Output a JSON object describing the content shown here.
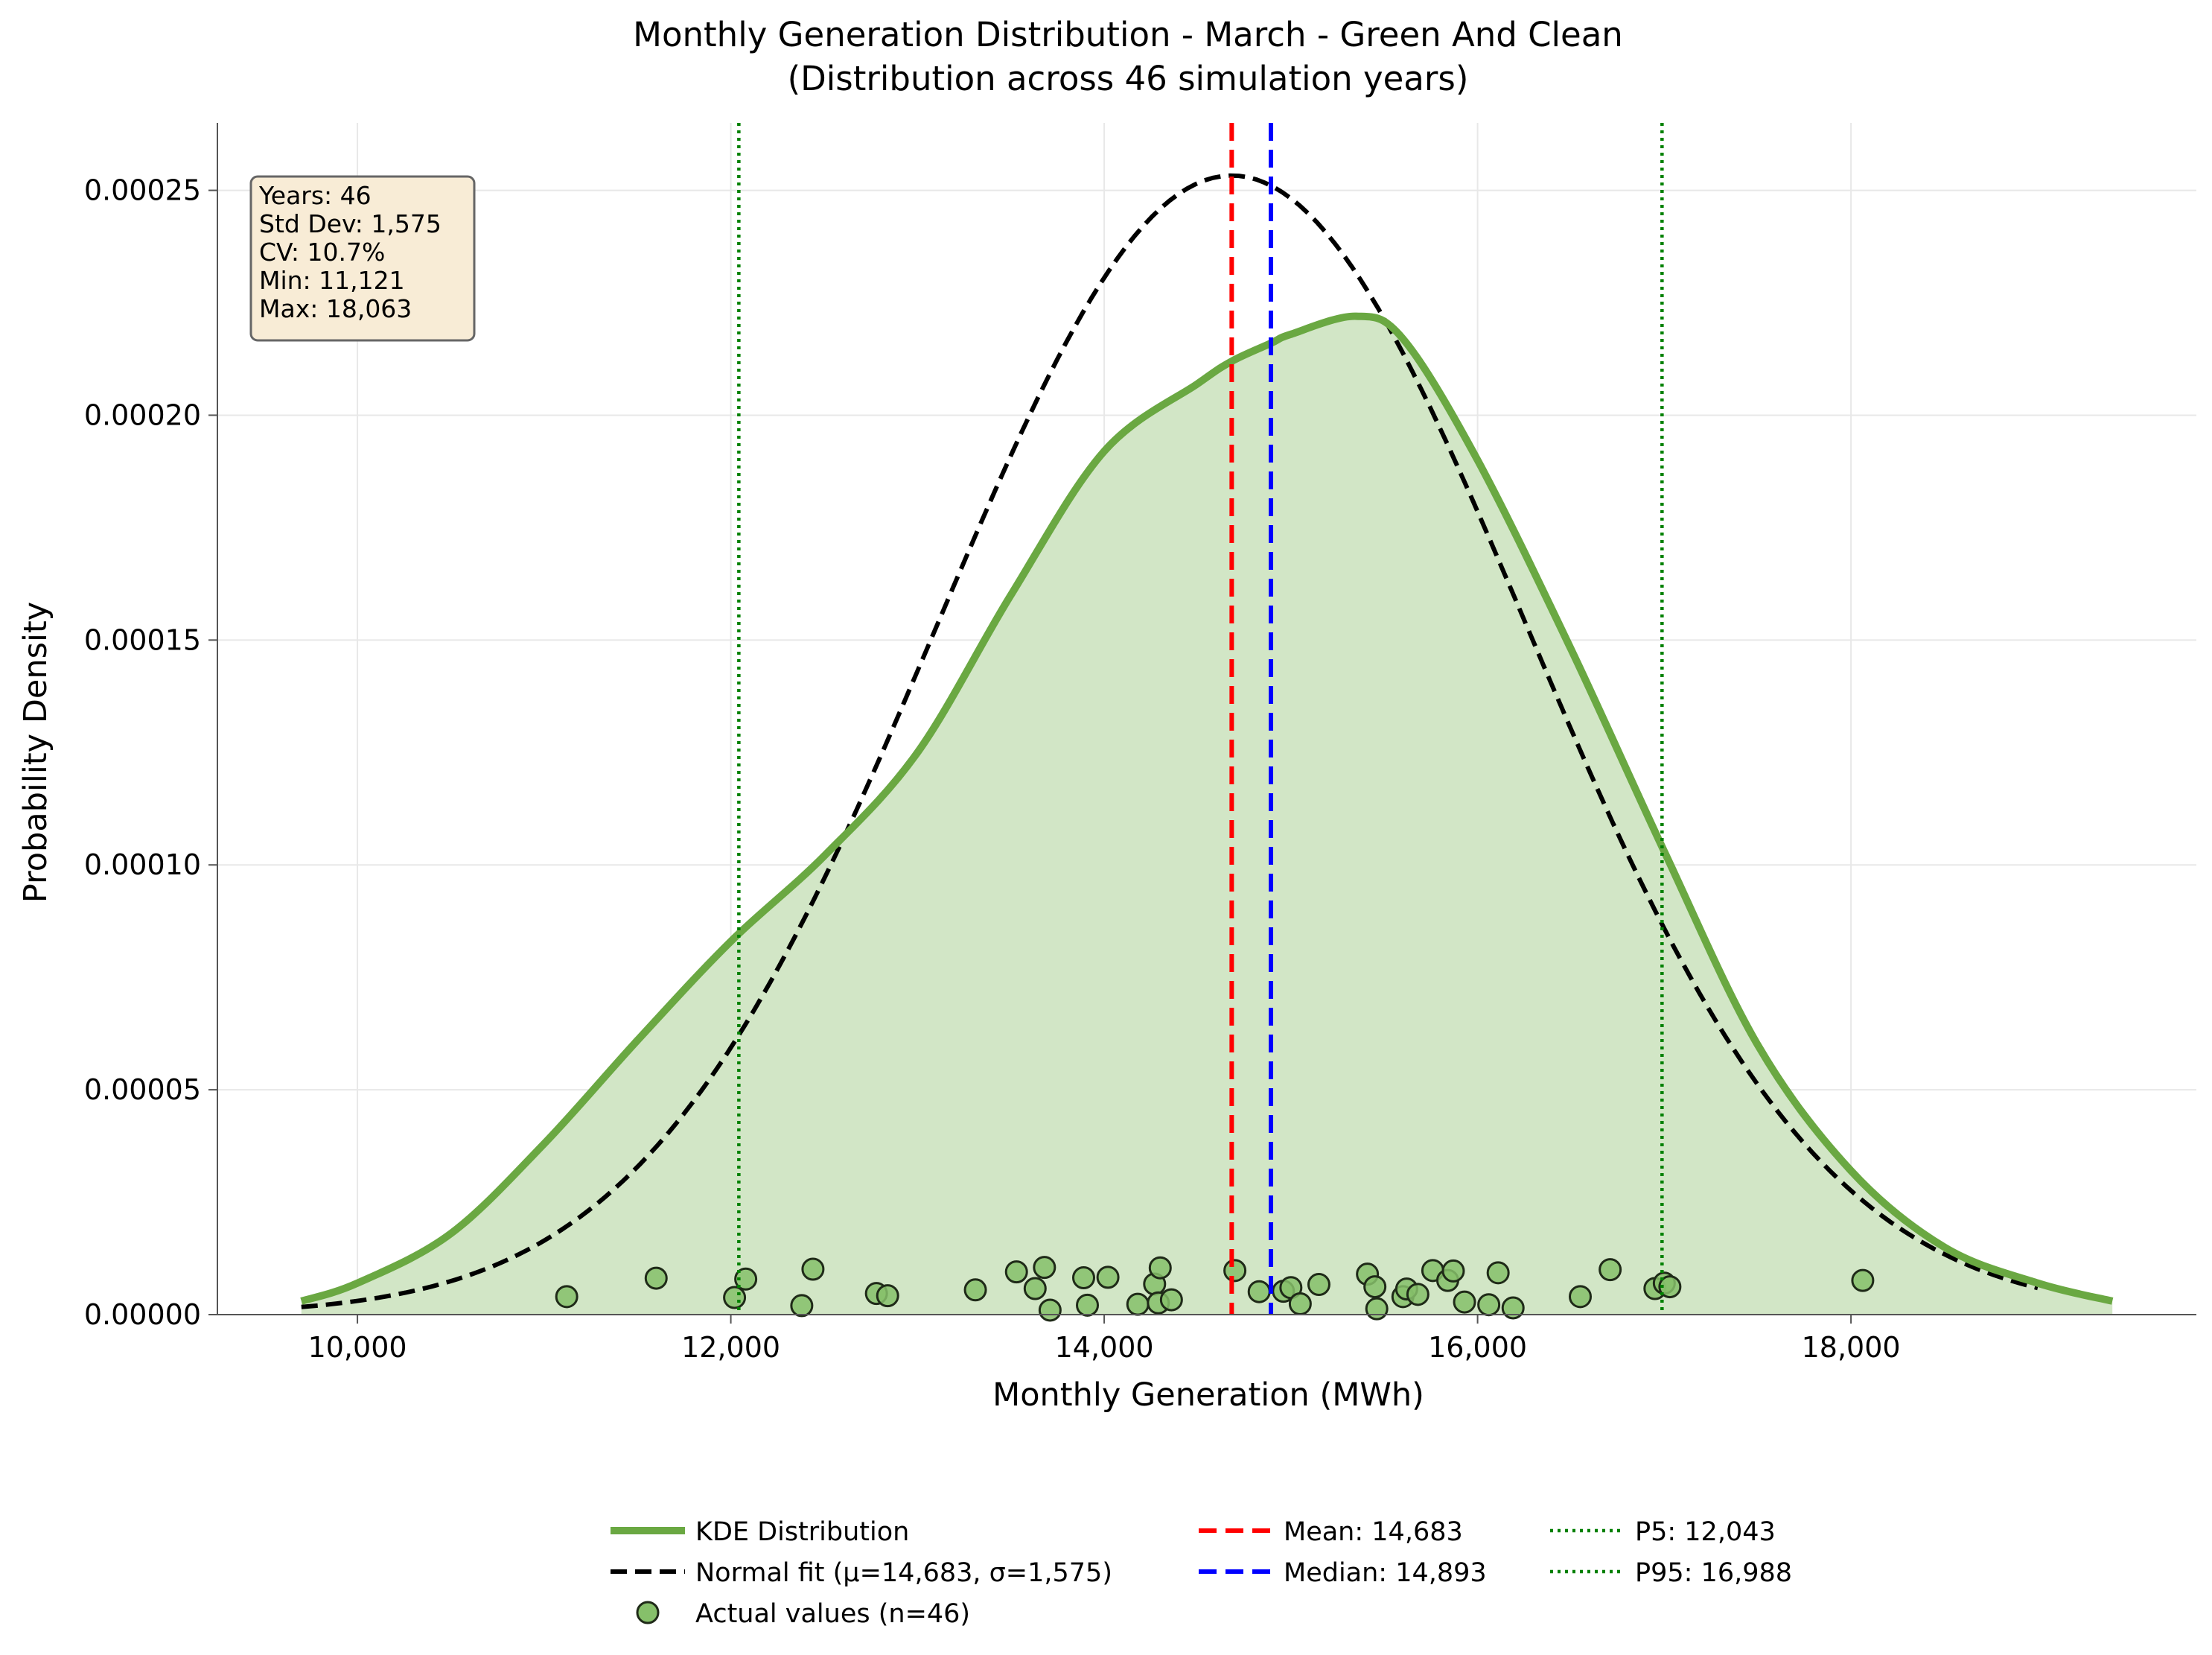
{
  "chart_data": {
    "type": "area",
    "title": "Monthly Generation Distribution - March - Green And Clean",
    "subtitle": "(Distribution across 46 simulation years)",
    "xlabel": "Monthly Generation (MWh)",
    "ylabel": "Probability Density",
    "xlim": [
      9250,
      19850
    ],
    "ylim": [
      0,
      0.000265
    ],
    "x_ticks": [
      10000,
      12000,
      14000,
      16000,
      18000
    ],
    "x_tick_labels": [
      "10,000",
      "12,000",
      "14,000",
      "16,000",
      "18,000"
    ],
    "y_ticks": [
      0,
      5e-05,
      0.0001,
      0.00015,
      0.0002,
      0.00025
    ],
    "y_tick_labels": [
      "0.00000",
      "0.00005",
      "0.00010",
      "0.00015",
      "0.00020",
      "0.00025"
    ],
    "grid": true,
    "legend_position": "bottom-center",
    "colors": {
      "kde_line": "#6aa842",
      "kde_fill": "#d2e6c6",
      "normal_fit": "#000000",
      "mean": "#ff0000",
      "median": "#0000ff",
      "percentile": "#008000",
      "points_fill": "#86c06a",
      "stats_box_bg": "#f8ecd6"
    },
    "kde": {
      "name": "KDE Distribution",
      "x": [
        9700,
        10000,
        10500,
        11000,
        11500,
        12000,
        12500,
        13000,
        13500,
        14000,
        14500,
        14683,
        14893,
        15000,
        15350,
        15600,
        16000,
        16500,
        17000,
        17500,
        18000,
        18500,
        19000,
        19400
      ],
      "y": [
        3e-06,
        7e-06,
        1.8e-05,
        3.8e-05,
        6.1e-05,
        8.3e-05,
        0.000102,
        0.000125,
        0.00016,
        0.000192,
        0.000207,
        0.000212,
        0.000216,
        0.000218,
        0.000222,
        0.000217,
        0.00019,
        0.000148,
        0.000103,
        6e-05,
        3.2e-05,
        1.5e-05,
        7e-06,
        3e-06
      ]
    },
    "normal_fit": {
      "name": "Normal fit (μ=14,683, σ=1,575)",
      "mu": 14683,
      "sigma": 1575,
      "x_range": [
        9700,
        19000
      ]
    },
    "mean": 14683,
    "median": 14893,
    "p5": 12043,
    "p95": 16988,
    "points": {
      "name": "Actual values (n=46)",
      "x": [
        11121,
        11600,
        12020,
        12080,
        12380,
        12440,
        12780,
        12840,
        13310,
        13530,
        13630,
        13680,
        13710,
        13890,
        13910,
        14020,
        14180,
        14270,
        14290,
        14300,
        14360,
        14700,
        14830,
        14960,
        15000,
        15150,
        15050,
        15410,
        15450,
        15460,
        15600,
        15620,
        15680,
        15760,
        15840,
        15870,
        15930,
        16060,
        16110,
        16190,
        16550,
        16710,
        16950,
        17000,
        17030,
        18063
      ],
      "y": [
        4e-06,
        8.1e-06,
        3.8e-06,
        7.9e-06,
        2e-06,
        1.01e-05,
        4.7e-06,
        4.2e-06,
        5.5e-06,
        9.5e-06,
        5.8e-06,
        1.05e-05,
        1e-06,
        8.2e-06,
        2.1e-06,
        8.3e-06,
        2.3e-06,
        6.8e-06,
        2.6e-06,
        1.04e-05,
        3.3e-06,
        9.8e-06,
        5.1e-06,
        5.2e-06,
        6e-06,
        6.7e-06,
        2.4e-06,
        9e-06,
        6.2e-06,
        1.3e-06,
        4e-06,
        5.7e-06,
        4.5e-06,
        9.8e-06,
        7.6e-06,
        9.7e-06,
        2.8e-06,
        2.2e-06,
        9.3e-06,
        1.5e-06,
        4e-06,
        1e-05,
        5.8e-06,
        7e-06,
        6.2e-06,
        7.6e-06
      ]
    },
    "stats_box": {
      "lines": [
        "Years: 46",
        "Std Dev: 1,575",
        "CV: 10.7%",
        "Min: 11,121",
        "Max: 18,063"
      ]
    },
    "legend": [
      {
        "label": "KDE Distribution",
        "style": "kde"
      },
      {
        "label": "Normal fit (μ=14,683, σ=1,575)",
        "style": "normal"
      },
      {
        "label": "Actual values (n=46)",
        "style": "points"
      },
      {
        "label": "Mean: 14,683",
        "style": "mean"
      },
      {
        "label": "Median: 14,893",
        "style": "median"
      },
      {
        "label": "P5: 12,043",
        "style": "p5"
      },
      {
        "label": "P95: 16,988",
        "style": "p95"
      }
    ]
  }
}
